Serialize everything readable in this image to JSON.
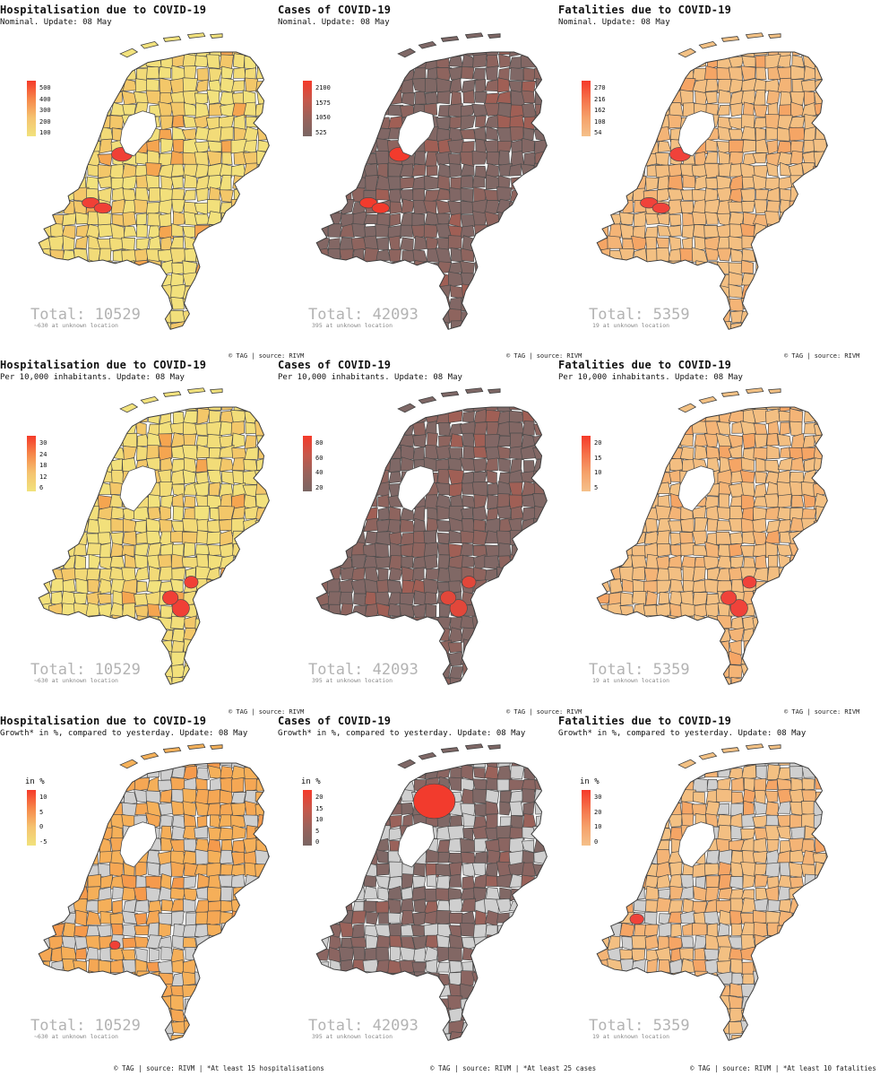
{
  "rows": [
    {
      "panels": [
        {
          "title": "Hospitalisation due to COVID-19",
          "subtitle": "Nominal. Update: 08 May",
          "legend": {
            "title": "",
            "labels": [
              "500",
              "400",
              "300",
              "200",
              "100"
            ],
            "gradient": [
              "#f53a2a",
              "#f6884a",
              "#f5c370",
              "#f1e27c"
            ]
          },
          "total": "Total: 10529",
          "unknown": "~630 at unknown location",
          "palette": {
            "base": "#f2e27d",
            "high": "#f5a550",
            "hot": "#f04036",
            "na": "#cfcfcf"
          }
        },
        {
          "title": "Cases of COVID-19",
          "subtitle": "Nominal. Update: 08 May",
          "legend": {
            "title": "",
            "labels": [
              "2100",
              "1575",
              "1050",
              "525"
            ],
            "gradient": [
              "#f53a2a",
              "#c8574a",
              "#9a625b",
              "#7a6663"
            ]
          },
          "total": "Total: 42093",
          "unknown": "395 at unknown location",
          "palette": {
            "base": "#7f6866",
            "high": "#a05f55",
            "hot": "#f23b2d",
            "na": "#cfcfcf"
          }
        },
        {
          "title": "Fatalities due to COVID-19",
          "subtitle": "Nominal. Update: 08 May",
          "legend": {
            "title": "",
            "labels": [
              "270",
              "216",
              "162",
              "108",
              "54"
            ],
            "gradient": [
              "#f53a2a",
              "#f5724a",
              "#f5a16a",
              "#f5c08a"
            ]
          },
          "total": "Total: 5359",
          "unknown": "19 at unknown location",
          "palette": {
            "base": "#f3c184",
            "high": "#f5a565",
            "hot": "#f0423a",
            "na": "#cfcfcf"
          }
        }
      ],
      "credits": [
        "© TAG | source: RIVM",
        "© TAG | source: RIVM",
        "© TAG | source: RIVM"
      ]
    },
    {
      "panels": [
        {
          "title": "Hospitalisation due to COVID-19",
          "subtitle": "Per 10,000 inhabitants. Update: 08 May",
          "legend": {
            "title": "",
            "labels": [
              "30",
              "24",
              "18",
              "12",
              "6"
            ],
            "gradient": [
              "#f53a2a",
              "#f6884a",
              "#f5c370",
              "#f1e27c"
            ]
          },
          "total": "Total: 10529",
          "unknown": "~630 at unknown location",
          "palette": {
            "base": "#f2e27d",
            "high": "#f5a550",
            "hot": "#f04036",
            "na": "#cfcfcf"
          }
        },
        {
          "title": "Cases of COVID-19",
          "subtitle": "Per 10,000 inhabitants. Update: 08 May",
          "legend": {
            "title": "",
            "labels": [
              "80",
              "60",
              "40",
              "20"
            ],
            "gradient": [
              "#f53a2a",
              "#c8574a",
              "#9a625b",
              "#7a6663"
            ]
          },
          "total": "Total: 42093",
          "unknown": "395 at unknown location",
          "palette": {
            "base": "#7f6866",
            "high": "#a05f55",
            "hot": "#e2473a",
            "na": "#cfcfcf"
          }
        },
        {
          "title": "Fatalities due to COVID-19",
          "subtitle": "Per 10,000 inhabitants. Update: 08 May",
          "legend": {
            "title": "",
            "labels": [
              "20",
              "15",
              "10",
              "5"
            ],
            "gradient": [
              "#f53a2a",
              "#f5724a",
              "#f5a16a",
              "#f5c08a"
            ]
          },
          "total": "Total: 5359",
          "unknown": "19 at unknown location",
          "palette": {
            "base": "#f3c184",
            "high": "#f5a565",
            "hot": "#f0423a",
            "na": "#cfcfcf"
          }
        }
      ],
      "credits": [
        "© TAG | source: RIVM",
        "© TAG | source: RIVM",
        "© TAG | source: RIVM"
      ]
    },
    {
      "panels": [
        {
          "title": "Hospitalisation due to COVID-19",
          "subtitle": "Growth* in %, compared to yesterday. Update: 08 May",
          "legend": {
            "title": "in %",
            "labels": [
              "10",
              "5",
              "0",
              "-5"
            ],
            "gradient": [
              "#f53a2a",
              "#f6884a",
              "#f5c370",
              "#f1e27c"
            ]
          },
          "total": "Total: 10529",
          "unknown": "~630 at unknown location",
          "palette": {
            "base": "#f5b15a",
            "high": "#f59a4c",
            "hot": "#f04036",
            "na": "#cfcfcf"
          }
        },
        {
          "title": "Cases of COVID-19",
          "subtitle": "Growth* in %, compared to yesterday. Update: 08 May",
          "legend": {
            "title": "in %",
            "labels": [
              "20",
              "15",
              "10",
              "5",
              "0"
            ],
            "gradient": [
              "#f53a2a",
              "#c8574a",
              "#9a625b",
              "#7a6663"
            ]
          },
          "total": "Total: 42093",
          "unknown": "395 at unknown location",
          "palette": {
            "base": "#7f6866",
            "high": "#9a625a",
            "hot": "#f23b2d",
            "na": "#cfcfcf"
          }
        },
        {
          "title": "Fatalities due to COVID-19",
          "subtitle": "Growth* in %, compared to yesterday. Update: 08 May",
          "legend": {
            "title": "in %",
            "labels": [
              "30",
              "20",
              "10",
              "0"
            ],
            "gradient": [
              "#f53a2a",
              "#f5724a",
              "#f5a16a",
              "#f5c08a"
            ]
          },
          "total": "Total: 5359",
          "unknown": "19 at unknown location",
          "palette": {
            "base": "#f3c184",
            "high": "#f5a565",
            "hot": "#f0423a",
            "na": "#cfcfcf"
          }
        }
      ],
      "credits": [
        "© TAG | source: RIVM | *At least 15 hospitalisations",
        "© TAG | source: RIVM | *At least 25 cases",
        "© TAG | source: RIVM | *At least 10 fatalities"
      ]
    }
  ]
}
